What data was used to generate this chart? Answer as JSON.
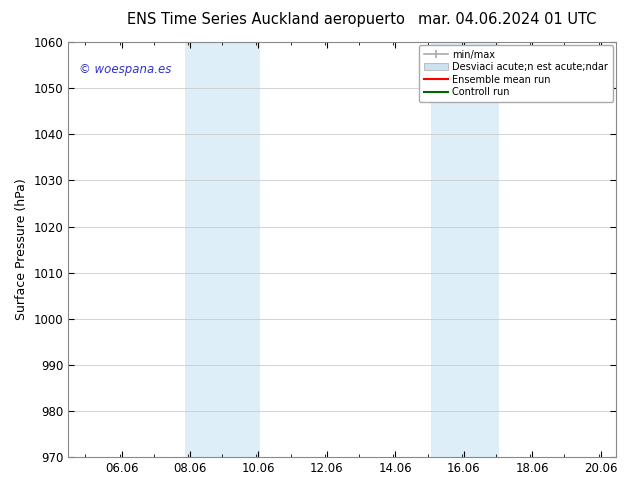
{
  "title_left": "ENS Time Series Auckland aeropuerto",
  "title_right": "mar. 04.06.2024 01 UTC",
  "ylabel": "Surface Pressure (hPa)",
  "ylim": [
    970,
    1060
  ],
  "xlim": [
    4.5,
    20.5
  ],
  "xticks": [
    6.06,
    8.06,
    10.06,
    12.06,
    14.06,
    16.06,
    18.06,
    20.06
  ],
  "xtick_labels": [
    "06.06",
    "08.06",
    "10.06",
    "12.06",
    "14.06",
    "16.06",
    "18.06",
    "20.06"
  ],
  "yticks": [
    970,
    980,
    990,
    1000,
    1010,
    1020,
    1030,
    1040,
    1050,
    1060
  ],
  "shaded_bands": [
    {
      "xmin": 7.9,
      "xmax": 10.1,
      "color": "#ddeef8"
    },
    {
      "xmin": 15.1,
      "xmax": 17.1,
      "color": "#ddeef8"
    }
  ],
  "watermark_text": "© woespana.es",
  "watermark_color": "#3333cc",
  "legend_label_1": "min/max",
  "legend_label_2": "Desviaci acute;n est acute;ndar",
  "legend_label_3": "Ensemble mean run",
  "legend_label_4": "Controll run",
  "legend_color_1": "#aaaaaa",
  "legend_color_2": "#cce0f0",
  "legend_color_3": "#ff0000",
  "legend_color_4": "#006600",
  "bg_color": "#ffffff",
  "plot_bg_color": "#ffffff",
  "grid_color": "#cccccc",
  "spine_color": "#888888",
  "tick_fontsize": 8.5,
  "label_fontsize": 9,
  "title_fontsize": 10.5
}
